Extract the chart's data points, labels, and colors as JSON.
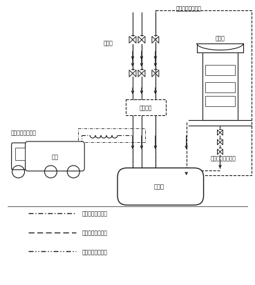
{
  "bg_color": "#ffffff",
  "line_color": "#1a1a1a",
  "text_color": "#1a1a1a",
  "labels": {
    "tank_truck": "槽车",
    "gasoline_tank": "汽油罐",
    "recovery_device": "回收装置",
    "vent": "放空口",
    "fuel_dispenser": "加油机",
    "first_system_label": "一次油气回收系统",
    "second_system_label": "二次油气回收系统",
    "third_system_label": "三次油气回收系统",
    "legend_first": "一次油气回收系统",
    "legend_second": "二次油气回收系统",
    "legend_third": "三次油气回收系统"
  },
  "figsize": [
    3.69,
    4.14
  ],
  "dpi": 100
}
